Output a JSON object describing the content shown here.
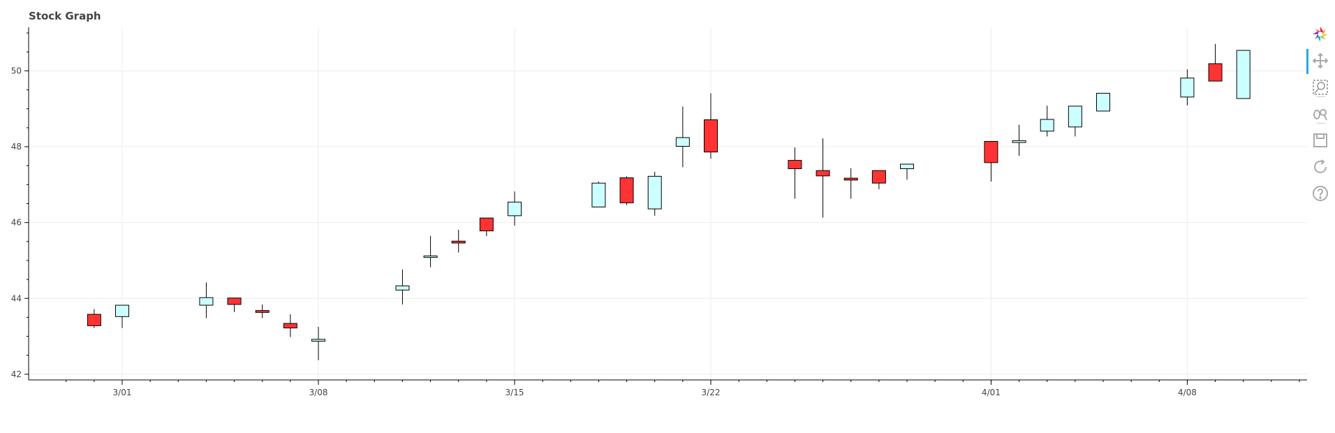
{
  "title": "Stock Graph",
  "colors": {
    "increasing": "#ccffff",
    "decreasing": "#ff3333",
    "outline": "#000000",
    "grid": "#ececec",
    "active_tool": "#26aae1"
  },
  "toolbar": {
    "tools": [
      {
        "name": "bokeh-logo-icon",
        "interactable": true
      },
      {
        "name": "pan-icon",
        "interactable": true,
        "active": true
      },
      {
        "name": "box-zoom-icon",
        "interactable": true
      },
      {
        "name": "wheel-zoom-icon",
        "interactable": true
      },
      {
        "name": "save-icon",
        "interactable": true
      },
      {
        "name": "reset-icon",
        "interactable": true
      },
      {
        "name": "help-icon",
        "interactable": true
      }
    ]
  },
  "chart_data": {
    "type": "candlestick",
    "title": "Stock Graph",
    "xlabel": "",
    "ylabel": "",
    "x_ticks": [
      "3/01",
      "3/08",
      "3/15",
      "3/22",
      "4/01",
      "4/08"
    ],
    "y_ticks": [
      42,
      44,
      46,
      48,
      50
    ],
    "ylim": [
      41.85,
      51.15
    ],
    "grid": true,
    "x_is_date": true,
    "year_note": "year not shown; tick labels are month/day",
    "candles": [
      {
        "date": "2/28",
        "open": 43.58,
        "close": 43.28,
        "high": 43.72,
        "low": 43.22
      },
      {
        "date": "3/01",
        "open": 43.52,
        "close": 43.82,
        "high": 43.82,
        "low": 43.22
      },
      {
        "date": "3/04",
        "open": 43.82,
        "close": 44.02,
        "high": 44.42,
        "low": 43.48
      },
      {
        "date": "3/05",
        "open": 44.01,
        "close": 43.84,
        "high": 44.01,
        "low": 43.64
      },
      {
        "date": "3/06",
        "open": 43.68,
        "close": 43.63,
        "high": 43.84,
        "low": 43.48
      },
      {
        "date": "3/07",
        "open": 43.34,
        "close": 43.22,
        "high": 43.58,
        "low": 42.98
      },
      {
        "date": "3/08",
        "open": 42.87,
        "close": 42.92,
        "high": 43.25,
        "low": 42.37
      },
      {
        "date": "3/11",
        "open": 44.22,
        "close": 44.33,
        "high": 44.76,
        "low": 43.84
      },
      {
        "date": "3/12",
        "open": 45.08,
        "close": 45.12,
        "high": 45.65,
        "low": 44.82
      },
      {
        "date": "3/13",
        "open": 45.51,
        "close": 45.46,
        "high": 45.81,
        "low": 45.21
      },
      {
        "date": "3/14",
        "open": 46.12,
        "close": 45.78,
        "high": 46.12,
        "low": 45.64
      },
      {
        "date": "3/15",
        "open": 46.18,
        "close": 46.54,
        "high": 46.82,
        "low": 45.92
      },
      {
        "date": "3/18",
        "open": 46.41,
        "close": 47.04,
        "high": 47.08,
        "low": 46.41
      },
      {
        "date": "3/19",
        "open": 47.18,
        "close": 46.52,
        "high": 47.22,
        "low": 46.46
      },
      {
        "date": "3/20",
        "open": 46.36,
        "close": 47.22,
        "high": 47.34,
        "low": 46.18
      },
      {
        "date": "3/21",
        "open": 48.01,
        "close": 48.24,
        "high": 49.06,
        "low": 47.46
      },
      {
        "date": "3/22",
        "open": 48.71,
        "close": 47.86,
        "high": 49.41,
        "low": 47.68
      },
      {
        "date": "3/25",
        "open": 47.64,
        "close": 47.42,
        "high": 47.98,
        "low": 46.63
      },
      {
        "date": "3/26",
        "open": 47.37,
        "close": 47.23,
        "high": 48.22,
        "low": 46.13
      },
      {
        "date": "3/27",
        "open": 47.17,
        "close": 47.12,
        "high": 47.43,
        "low": 46.63
      },
      {
        "date": "3/28",
        "open": 47.37,
        "close": 47.04,
        "high": 47.37,
        "low": 46.88
      },
      {
        "date": "3/29",
        "open": 47.42,
        "close": 47.54,
        "high": 47.54,
        "low": 47.13
      },
      {
        "date": "4/01",
        "open": 48.14,
        "close": 47.58,
        "high": 48.14,
        "low": 47.08
      },
      {
        "date": "4/02",
        "open": 48.11,
        "close": 48.16,
        "high": 48.58,
        "low": 47.76
      },
      {
        "date": "4/03",
        "open": 48.41,
        "close": 48.72,
        "high": 49.08,
        "low": 48.27
      },
      {
        "date": "4/04",
        "open": 48.52,
        "close": 49.07,
        "high": 49.07,
        "low": 48.27
      },
      {
        "date": "4/05",
        "open": 48.94,
        "close": 49.41,
        "high": 49.41,
        "low": 48.94
      },
      {
        "date": "4/08",
        "open": 49.31,
        "close": 49.81,
        "high": 50.04,
        "low": 49.09
      },
      {
        "date": "4/09",
        "open": 50.19,
        "close": 49.73,
        "high": 50.71,
        "low": 49.73
      },
      {
        "date": "4/10",
        "open": 49.27,
        "close": 50.54,
        "high": 50.54,
        "low": 49.27
      }
    ]
  }
}
